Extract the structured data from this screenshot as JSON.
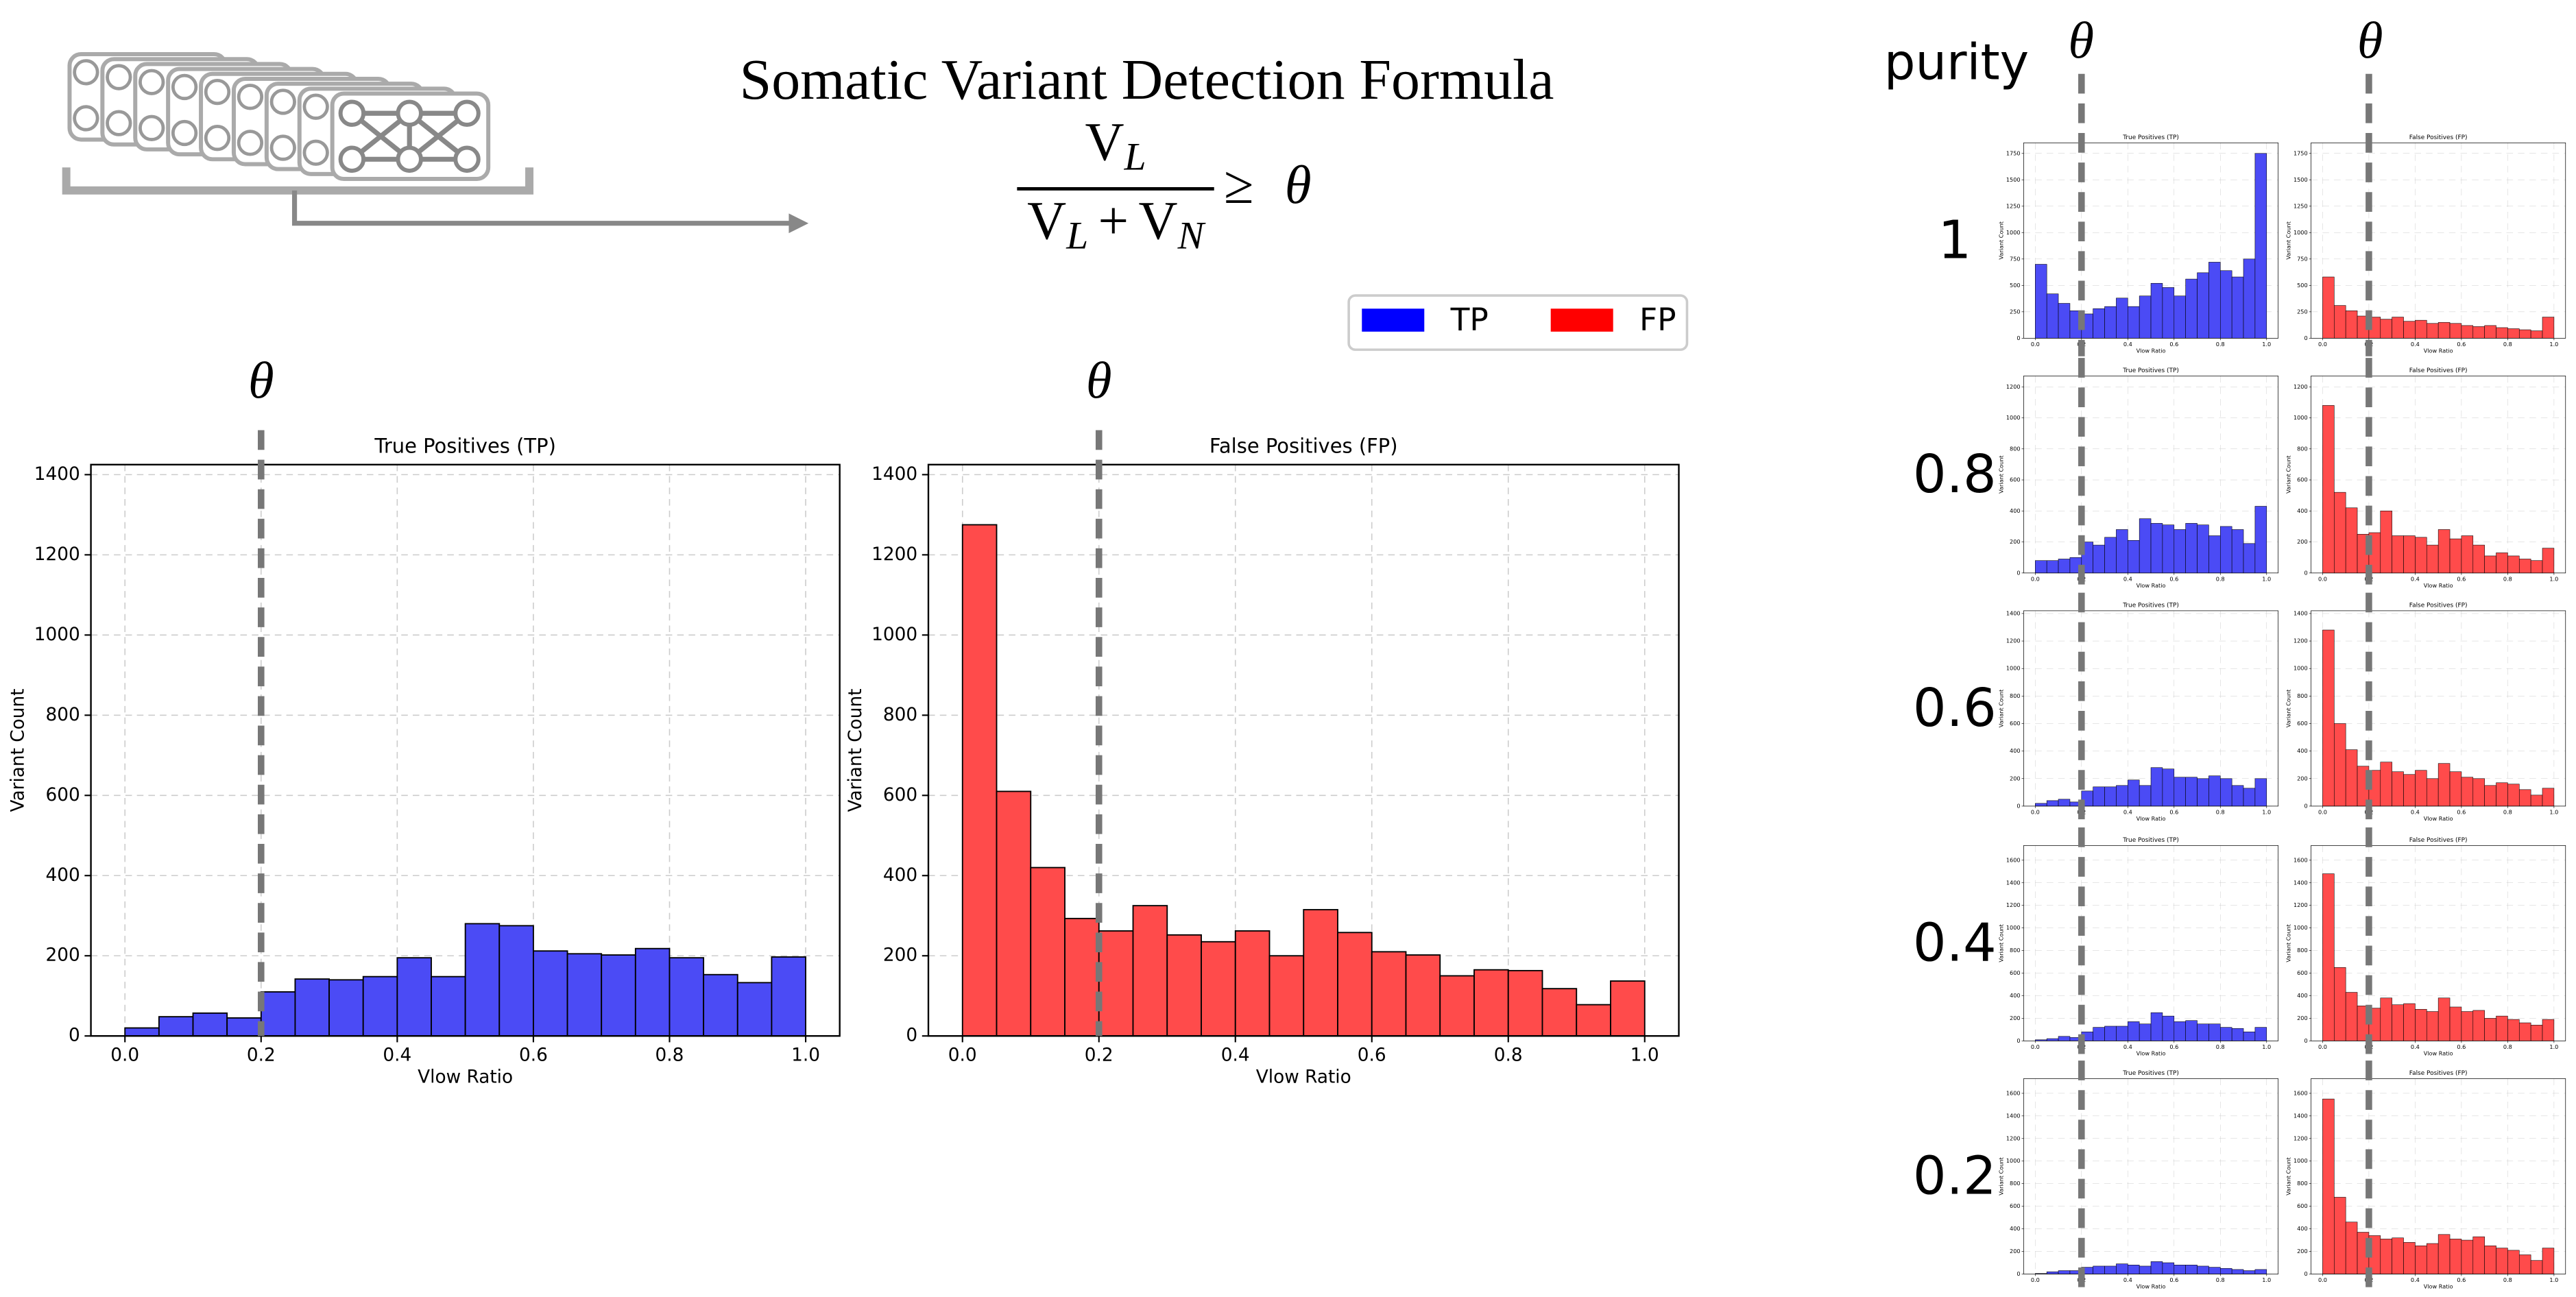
{
  "header": {
    "title": "Somatic Variant Detection Formula",
    "formula": {
      "numerator": [
        "V",
        "L"
      ],
      "denominator": [
        "V",
        "L",
        "+",
        "V",
        "N"
      ],
      "relation": "≥",
      "threshold": "θ"
    }
  },
  "legend": [
    {
      "name": "TP",
      "color": "#0000ff"
    },
    {
      "name": "FP",
      "color": "#ff0000"
    }
  ],
  "purity": {
    "label": "purity",
    "threshold_labels": [
      "θ",
      "θ"
    ],
    "levels": [
      1,
      0.8,
      0.6,
      0.4,
      0.2
    ]
  },
  "chart_data": [
    {
      "type": "histogram",
      "title": "True Positives (TP)",
      "xlabel": "Vlow Ratio",
      "ylabel": "Variant Count",
      "color": "#4b4bf5",
      "bins": [
        0,
        0.05,
        0.1,
        0.15,
        0.2,
        0.25,
        0.3,
        0.35,
        0.4,
        0.45,
        0.5,
        0.55,
        0.6,
        0.65,
        0.7,
        0.75,
        0.8,
        0.85,
        0.9,
        0.95,
        1
      ],
      "values": [
        20,
        48,
        57,
        45,
        110,
        142,
        140,
        148,
        195,
        148,
        280,
        275,
        212,
        205,
        202,
        218,
        195,
        153,
        133,
        197
      ],
      "xlim": [
        -0.05,
        1.05
      ],
      "xticks": [
        {
          "value": 0,
          "label": "0.0"
        },
        0.2,
        0.4,
        0.6,
        0.8,
        {
          "value": 1,
          "label": "1.0"
        }
      ],
      "ylim": [
        0,
        1425
      ],
      "yticks": [
        0,
        200,
        400,
        600,
        800,
        1000,
        1200,
        1400
      ],
      "grid": true,
      "threshold": 0.2,
      "threshold_label": "θ"
    },
    {
      "type": "histogram",
      "title": "False Positives (FP)",
      "xlabel": "Vlow Ratio",
      "ylabel": "Variant Count",
      "color": "#ff4b4b",
      "bins": [
        0,
        0.05,
        0.1,
        0.15,
        0.2,
        0.25,
        0.3,
        0.35,
        0.4,
        0.45,
        0.5,
        0.55,
        0.6,
        0.65,
        0.7,
        0.75,
        0.8,
        0.85,
        0.9,
        0.95,
        1
      ],
      "values": [
        1275,
        610,
        420,
        293,
        262,
        325,
        252,
        235,
        262,
        200,
        315,
        258,
        210,
        202,
        150,
        165,
        163,
        118,
        78,
        137
      ],
      "xlim": [
        -0.05,
        1.05
      ],
      "xticks": [
        {
          "value": 0,
          "label": "0.0"
        },
        0.2,
        0.4,
        0.6,
        0.8,
        {
          "value": 1,
          "label": "1.0"
        }
      ],
      "ylim": [
        0,
        1425
      ],
      "yticks": [
        0,
        200,
        400,
        600,
        800,
        1000,
        1200,
        1400
      ],
      "grid": true,
      "threshold": 0.2,
      "threshold_label": "θ"
    },
    {
      "type": "histogram",
      "title": "True Positives (TP)",
      "xlabel": "Vlow Ratio",
      "ylabel": "Variant Count",
      "color": "#4b4bf5",
      "bins": [
        0,
        0.05,
        0.1,
        0.15,
        0.2,
        0.25,
        0.3,
        0.35,
        0.4,
        0.45,
        0.5,
        0.55,
        0.6,
        0.65,
        0.7,
        0.75,
        0.8,
        0.85,
        0.9,
        0.95,
        1
      ],
      "values": [
        700,
        420,
        330,
        260,
        230,
        280,
        300,
        380,
        300,
        400,
        520,
        480,
        400,
        560,
        620,
        720,
        640,
        580,
        750,
        1750
      ],
      "xlim": [
        -0.05,
        1.05
      ],
      "xticks": [
        {
          "value": 0,
          "label": "0.0"
        },
        0.2,
        0.4,
        0.6,
        0.8,
        {
          "value": 1,
          "label": "1.0"
        }
      ],
      "ylim": [
        0,
        1850
      ],
      "yticks": [
        0,
        250,
        500,
        750,
        1000,
        1250,
        1500,
        1750
      ],
      "grid": true,
      "threshold": 0.2
    },
    {
      "type": "histogram",
      "title": "False Positives (FP)",
      "xlabel": "Vlow Ratio",
      "ylabel": "Variant Count",
      "color": "#ff4b4b",
      "bins": [
        0,
        0.05,
        0.1,
        0.15,
        0.2,
        0.25,
        0.3,
        0.35,
        0.4,
        0.45,
        0.5,
        0.55,
        0.6,
        0.65,
        0.7,
        0.75,
        0.8,
        0.85,
        0.9,
        0.95,
        1
      ],
      "values": [
        580,
        310,
        260,
        210,
        200,
        180,
        200,
        160,
        170,
        140,
        150,
        140,
        120,
        110,
        120,
        100,
        90,
        80,
        70,
        200
      ],
      "xlim": [
        -0.05,
        1.05
      ],
      "xticks": [
        {
          "value": 0,
          "label": "0.0"
        },
        0.2,
        0.4,
        0.6,
        0.8,
        {
          "value": 1,
          "label": "1.0"
        }
      ],
      "ylim": [
        0,
        1850
      ],
      "yticks": [
        0,
        250,
        500,
        750,
        1000,
        1250,
        1500,
        1750
      ],
      "grid": true,
      "threshold": 0.2
    },
    {
      "type": "histogram",
      "title": "True Positives (TP)",
      "xlabel": "Vlow Ratio",
      "ylabel": "Variant Count",
      "color": "#4b4bf5",
      "bins": [
        0,
        0.05,
        0.1,
        0.15,
        0.2,
        0.25,
        0.3,
        0.35,
        0.4,
        0.45,
        0.5,
        0.55,
        0.6,
        0.65,
        0.7,
        0.75,
        0.8,
        0.85,
        0.9,
        0.95,
        1
      ],
      "values": [
        80,
        80,
        90,
        100,
        200,
        180,
        230,
        280,
        210,
        350,
        320,
        310,
        280,
        320,
        310,
        240,
        300,
        280,
        190,
        430
      ],
      "xlim": [
        -0.05,
        1.05
      ],
      "xticks": [
        {
          "value": 0,
          "label": "0.0"
        },
        0.2,
        0.4,
        0.6,
        0.8,
        {
          "value": 1,
          "label": "1.0"
        }
      ],
      "ylim": [
        0,
        1270
      ],
      "yticks": [
        0,
        200,
        400,
        600,
        800,
        1000,
        1200
      ],
      "grid": true,
      "threshold": 0.2
    },
    {
      "type": "histogram",
      "title": "False Positives (FP)",
      "xlabel": "Vlow Ratio",
      "ylabel": "Variant Count",
      "color": "#ff4b4b",
      "bins": [
        0,
        0.05,
        0.1,
        0.15,
        0.2,
        0.25,
        0.3,
        0.35,
        0.4,
        0.45,
        0.5,
        0.55,
        0.6,
        0.65,
        0.7,
        0.75,
        0.8,
        0.85,
        0.9,
        0.95,
        1
      ],
      "values": [
        1080,
        520,
        420,
        250,
        260,
        400,
        240,
        240,
        230,
        180,
        280,
        220,
        240,
        180,
        110,
        130,
        110,
        90,
        80,
        160
      ],
      "xlim": [
        -0.05,
        1.05
      ],
      "xticks": [
        {
          "value": 0,
          "label": "0.0"
        },
        0.2,
        0.4,
        0.6,
        0.8,
        {
          "value": 1,
          "label": "1.0"
        }
      ],
      "ylim": [
        0,
        1270
      ],
      "yticks": [
        0,
        200,
        400,
        600,
        800,
        1000,
        1200
      ],
      "grid": true,
      "threshold": 0.2
    },
    {
      "type": "histogram",
      "title": "True Positives (TP)",
      "xlabel": "Vlow Ratio",
      "ylabel": "Variant Count",
      "color": "#4b4bf5",
      "bins": [
        0,
        0.05,
        0.1,
        0.15,
        0.2,
        0.25,
        0.3,
        0.35,
        0.4,
        0.45,
        0.5,
        0.55,
        0.6,
        0.65,
        0.7,
        0.75,
        0.8,
        0.85,
        0.9,
        0.95,
        1
      ],
      "values": [
        20,
        40,
        50,
        30,
        110,
        140,
        140,
        150,
        190,
        150,
        280,
        270,
        210,
        210,
        200,
        220,
        200,
        150,
        130,
        200
      ],
      "xlim": [
        -0.05,
        1.05
      ],
      "xticks": [
        {
          "value": 0,
          "label": "0.0"
        },
        0.2,
        0.4,
        0.6,
        0.8,
        {
          "value": 1,
          "label": "1.0"
        }
      ],
      "ylim": [
        0,
        1420
      ],
      "yticks": [
        0,
        200,
        400,
        600,
        800,
        1000,
        1200,
        1400
      ],
      "grid": true,
      "threshold": 0.2
    },
    {
      "type": "histogram",
      "title": "False Positives (FP)",
      "xlabel": "Vlow Ratio",
      "ylabel": "Variant Count",
      "color": "#ff4b4b",
      "bins": [
        0,
        0.05,
        0.1,
        0.15,
        0.2,
        0.25,
        0.3,
        0.35,
        0.4,
        0.45,
        0.5,
        0.55,
        0.6,
        0.65,
        0.7,
        0.75,
        0.8,
        0.85,
        0.9,
        0.95,
        1
      ],
      "values": [
        1280,
        600,
        410,
        290,
        260,
        320,
        250,
        230,
        260,
        200,
        310,
        250,
        210,
        200,
        150,
        170,
        160,
        120,
        80,
        130
      ],
      "xlim": [
        -0.05,
        1.05
      ],
      "xticks": [
        {
          "value": 0,
          "label": "0.0"
        },
        0.2,
        0.4,
        0.6,
        0.8,
        {
          "value": 1,
          "label": "1.0"
        }
      ],
      "ylim": [
        0,
        1420
      ],
      "yticks": [
        0,
        200,
        400,
        600,
        800,
        1000,
        1200,
        1400
      ],
      "grid": true,
      "threshold": 0.2
    },
    {
      "type": "histogram",
      "title": "True Positives (TP)",
      "xlabel": "Vlow Ratio",
      "ylabel": "Variant Count",
      "color": "#4b4bf5",
      "bins": [
        0,
        0.05,
        0.1,
        0.15,
        0.2,
        0.25,
        0.3,
        0.35,
        0.4,
        0.45,
        0.5,
        0.55,
        0.6,
        0.65,
        0.7,
        0.75,
        0.8,
        0.85,
        0.9,
        0.95,
        1
      ],
      "values": [
        10,
        20,
        40,
        30,
        80,
        120,
        130,
        130,
        170,
        150,
        250,
        220,
        170,
        180,
        150,
        150,
        120,
        110,
        80,
        120
      ],
      "xlim": [
        -0.05,
        1.05
      ],
      "xticks": [
        {
          "value": 0,
          "label": "0.0"
        },
        0.2,
        0.4,
        0.6,
        0.8,
        {
          "value": 1,
          "label": "1.0"
        }
      ],
      "ylim": [
        0,
        1730
      ],
      "yticks": [
        0,
        200,
        400,
        600,
        800,
        1000,
        1200,
        1400,
        1600
      ],
      "grid": true,
      "threshold": 0.2
    },
    {
      "type": "histogram",
      "title": "False Positives (FP)",
      "xlabel": "Vlow Ratio",
      "ylabel": "Variant Count",
      "color": "#ff4b4b",
      "bins": [
        0,
        0.05,
        0.1,
        0.15,
        0.2,
        0.25,
        0.3,
        0.35,
        0.4,
        0.45,
        0.5,
        0.55,
        0.6,
        0.65,
        0.7,
        0.75,
        0.8,
        0.85,
        0.9,
        0.95,
        1
      ],
      "values": [
        1480,
        650,
        430,
        310,
        290,
        380,
        320,
        330,
        280,
        260,
        380,
        300,
        260,
        270,
        200,
        220,
        190,
        160,
        140,
        190
      ],
      "xlim": [
        -0.05,
        1.05
      ],
      "xticks": [
        {
          "value": 0,
          "label": "0.0"
        },
        0.2,
        0.4,
        0.6,
        0.8,
        {
          "value": 1,
          "label": "1.0"
        }
      ],
      "ylim": [
        0,
        1730
      ],
      "yticks": [
        0,
        200,
        400,
        600,
        800,
        1000,
        1200,
        1400,
        1600
      ],
      "grid": true,
      "threshold": 0.2
    },
    {
      "type": "histogram",
      "title": "True Positives (TP)",
      "xlabel": "Vlow Ratio",
      "ylabel": "Variant Count",
      "color": "#4b4bf5",
      "bins": [
        0,
        0.05,
        0.1,
        0.15,
        0.2,
        0.25,
        0.3,
        0.35,
        0.4,
        0.45,
        0.5,
        0.55,
        0.6,
        0.65,
        0.7,
        0.75,
        0.8,
        0.85,
        0.9,
        0.95,
        1
      ],
      "values": [
        5,
        20,
        30,
        30,
        60,
        70,
        70,
        90,
        80,
        70,
        110,
        100,
        80,
        80,
        70,
        60,
        50,
        40,
        30,
        40
      ],
      "xlim": [
        -0.05,
        1.05
      ],
      "xticks": [
        {
          "value": 0,
          "label": "0.0"
        },
        0.2,
        0.4,
        0.6,
        0.8,
        {
          "value": 1,
          "label": "1.0"
        }
      ],
      "ylim": [
        0,
        1730
      ],
      "yticks": [
        0,
        200,
        400,
        600,
        800,
        1000,
        1200,
        1400,
        1600
      ],
      "grid": true,
      "threshold": 0.2
    },
    {
      "type": "histogram",
      "title": "False Positives (FP)",
      "xlabel": "Vlow Ratio",
      "ylabel": "Variant Count",
      "color": "#ff4b4b",
      "bins": [
        0,
        0.05,
        0.1,
        0.15,
        0.2,
        0.25,
        0.3,
        0.35,
        0.4,
        0.45,
        0.5,
        0.55,
        0.6,
        0.65,
        0.7,
        0.75,
        0.8,
        0.85,
        0.9,
        0.95,
        1
      ],
      "values": [
        1550,
        680,
        460,
        370,
        340,
        310,
        320,
        280,
        250,
        270,
        350,
        310,
        300,
        330,
        250,
        230,
        210,
        170,
        120,
        230
      ],
      "xlim": [
        -0.05,
        1.05
      ],
      "xticks": [
        {
          "value": 0,
          "label": "0.0"
        },
        0.2,
        0.4,
        0.6,
        0.8,
        {
          "value": 1,
          "label": "1.0"
        }
      ],
      "ylim": [
        0,
        1730
      ],
      "yticks": [
        0,
        200,
        400,
        600,
        800,
        1000,
        1200,
        1400,
        1600
      ],
      "grid": true,
      "threshold": 0.2
    }
  ]
}
